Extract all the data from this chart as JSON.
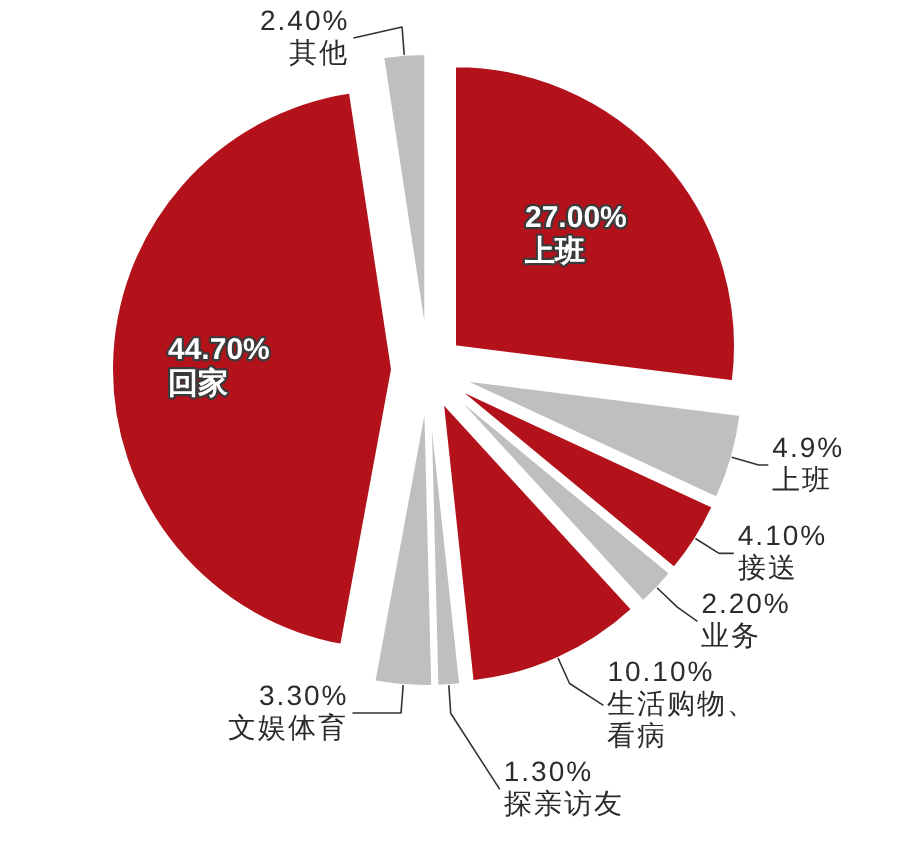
{
  "chart_data": {
    "type": "pie",
    "categories": [
      "上班",
      "上班",
      "接送",
      "业务",
      "生活购物、看病",
      "探亲访友",
      "文娱体育",
      "回家",
      "其他"
    ],
    "values": [
      27.0,
      4.9,
      4.1,
      2.2,
      10.1,
      1.3,
      3.3,
      44.7,
      2.4
    ],
    "colors": [
      "#b3121b",
      "#bfbfbf",
      "#b3121b",
      "#bfbfbf",
      "#b3121b",
      "#bfbfbf",
      "#bfbfbf",
      "#b3121b",
      "#bfbfbf"
    ],
    "value_labels": [
      "27.00%",
      "4.9%",
      "4.10%",
      "2.20%",
      "10.10%",
      "1.30%",
      "3.30%",
      "44.70%",
      "2.40%"
    ]
  }
}
